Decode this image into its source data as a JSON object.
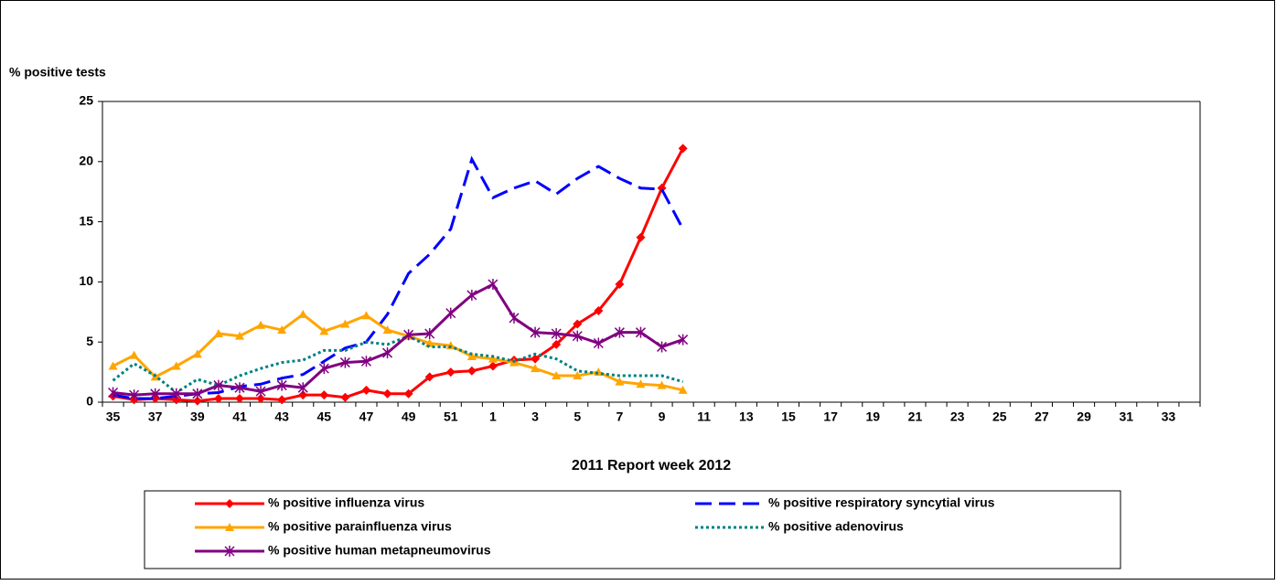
{
  "chart_data": {
    "type": "line",
    "y_label": "% positive tests",
    "x_label": "2011 Report week   2012",
    "categories": [
      "35",
      null,
      "37",
      null,
      "39",
      null,
      "41",
      null,
      "43",
      null,
      "45",
      null,
      "47",
      null,
      "49",
      null,
      "51",
      null,
      "1",
      null,
      "3",
      null,
      "5",
      null,
      "7",
      null,
      "9",
      null,
      "11",
      null,
      "13",
      null,
      "15",
      null,
      "17",
      null,
      "19",
      null,
      "21",
      null,
      "23",
      null,
      "25",
      null,
      "27",
      null,
      "29",
      null,
      "31",
      null,
      "33",
      null
    ],
    "ylim": [
      0,
      25
    ],
    "yticks": [
      0,
      5,
      10,
      15,
      20,
      25
    ],
    "legend": "bottom",
    "series": [
      {
        "name": "% positive influenza virus",
        "color": "#ff0000",
        "marker": "diamond",
        "dash": "solid",
        "values": [
          0.5,
          0.2,
          0.3,
          0.2,
          0.1,
          0.3,
          0.3,
          0.3,
          0.2,
          0.6,
          0.6,
          0.4,
          1.0,
          0.7,
          0.7,
          2.1,
          2.5,
          2.6,
          3.0,
          3.5,
          3.6,
          4.8,
          6.5,
          7.6,
          9.8,
          13.7,
          17.8,
          21.1,
          null,
          null,
          null,
          null,
          null,
          null,
          null,
          null,
          null,
          null,
          null,
          null,
          null,
          null,
          null,
          null,
          null,
          null,
          null,
          null,
          null,
          null,
          null,
          null
        ]
      },
      {
        "name": "% positive respiratory syncytial virus",
        "color": "#0000ff",
        "marker": "none",
        "dash": "dash",
        "values": [
          0.6,
          0.3,
          0.3,
          0.5,
          0.7,
          0.8,
          1.3,
          1.5,
          2.0,
          2.3,
          3.4,
          4.5,
          5.0,
          7.3,
          10.7,
          12.3,
          14.4,
          20.2,
          17.0,
          17.8,
          18.4,
          17.3,
          18.6,
          19.6,
          18.6,
          17.8,
          17.7,
          14.4,
          null,
          null,
          null,
          null,
          null,
          null,
          null,
          null,
          null,
          null,
          null,
          null,
          null,
          null,
          null,
          null,
          null,
          null,
          null,
          null,
          null,
          null,
          null,
          null
        ]
      },
      {
        "name": "% positive parainfluenza virus",
        "color": "#ffa500",
        "marker": "triangle",
        "dash": "solid",
        "values": [
          3.0,
          3.9,
          2.1,
          3.0,
          4.0,
          5.7,
          5.5,
          6.4,
          6.0,
          7.3,
          5.9,
          6.5,
          7.2,
          6.0,
          5.5,
          4.9,
          4.7,
          3.8,
          3.6,
          3.3,
          2.8,
          2.2,
          2.2,
          2.5,
          1.7,
          1.5,
          1.4,
          1.0,
          null,
          null,
          null,
          null,
          null,
          null,
          null,
          null,
          null,
          null,
          null,
          null,
          null,
          null,
          null,
          null,
          null,
          null,
          null,
          null,
          null,
          null,
          null,
          null
        ]
      },
      {
        "name": "% positive adenovirus",
        "color": "#008080",
        "marker": "none",
        "dash": "dot",
        "values": [
          1.8,
          3.2,
          2.2,
          0.8,
          1.9,
          1.4,
          2.2,
          2.8,
          3.3,
          3.5,
          4.3,
          4.3,
          5.0,
          4.8,
          5.5,
          4.6,
          4.6,
          4.0,
          3.8,
          3.4,
          4.0,
          3.6,
          2.6,
          2.4,
          2.2,
          2.2,
          2.2,
          1.7,
          null,
          null,
          null,
          null,
          null,
          null,
          null,
          null,
          null,
          null,
          null,
          null,
          null,
          null,
          null,
          null,
          null,
          null,
          null,
          null,
          null,
          null,
          null,
          null
        ]
      },
      {
        "name": "% positive human metapneumovirus",
        "color": "#800080",
        "marker": "star",
        "dash": "solid",
        "values": [
          0.8,
          0.6,
          0.7,
          0.7,
          0.7,
          1.4,
          1.2,
          0.9,
          1.4,
          1.2,
          2.8,
          3.3,
          3.4,
          4.1,
          5.6,
          5.7,
          7.4,
          8.9,
          9.8,
          7.0,
          5.8,
          5.7,
          5.5,
          4.9,
          5.8,
          5.8,
          4.6,
          5.2,
          null,
          null,
          null,
          null,
          null,
          null,
          null,
          null,
          null,
          null,
          null,
          null,
          null,
          null,
          null,
          null,
          null,
          null,
          null,
          null,
          null,
          null,
          null,
          null
        ]
      }
    ]
  }
}
